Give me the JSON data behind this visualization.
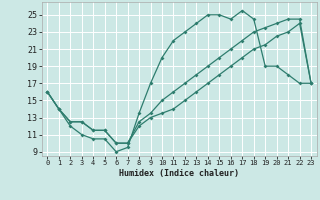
{
  "xlabel": "Humidex (Indice chaleur)",
  "bg_color": "#cce8e5",
  "grid_color": "#ffffff",
  "line_color": "#2e7d6e",
  "xlim": [
    -0.5,
    23.5
  ],
  "ylim": [
    8.5,
    26.5
  ],
  "xticks": [
    0,
    1,
    2,
    3,
    4,
    5,
    6,
    7,
    8,
    9,
    10,
    11,
    12,
    13,
    14,
    15,
    16,
    17,
    18,
    19,
    20,
    21,
    22,
    23
  ],
  "yticks": [
    9,
    11,
    13,
    15,
    17,
    19,
    21,
    23,
    25
  ],
  "line1_x": [
    0,
    1,
    2,
    3,
    4,
    5,
    6,
    7,
    8,
    9,
    10,
    11,
    12,
    13,
    14,
    15,
    16,
    17,
    18,
    19,
    20,
    21,
    22,
    23
  ],
  "line1_y": [
    16,
    14,
    12,
    11,
    10.5,
    10.5,
    9,
    9.5,
    13.5,
    17,
    20,
    22,
    23,
    24,
    25,
    25,
    24.5,
    25.5,
    24.5,
    19,
    19,
    18,
    17,
    17
  ],
  "line2_x": [
    0,
    1,
    2,
    3,
    4,
    5,
    6,
    7,
    8,
    9,
    10,
    11,
    12,
    13,
    14,
    15,
    16,
    17,
    18,
    19,
    20,
    21,
    22,
    23
  ],
  "line2_y": [
    16,
    14,
    12.5,
    12.5,
    11.5,
    11.5,
    10,
    10,
    12.5,
    13.5,
    15,
    16,
    17,
    18,
    19,
    20,
    21,
    22,
    23,
    23.5,
    24,
    24.5,
    24.5,
    17
  ],
  "line3_x": [
    0,
    1,
    2,
    3,
    4,
    5,
    6,
    7,
    8,
    9,
    10,
    11,
    12,
    13,
    14,
    15,
    16,
    17,
    18,
    19,
    20,
    21,
    22,
    23
  ],
  "line3_y": [
    16,
    14,
    12.5,
    12.5,
    11.5,
    11.5,
    10,
    10,
    12,
    13,
    13.5,
    14,
    15,
    16,
    17,
    18,
    19,
    20,
    21,
    21.5,
    22.5,
    23,
    24,
    17
  ]
}
